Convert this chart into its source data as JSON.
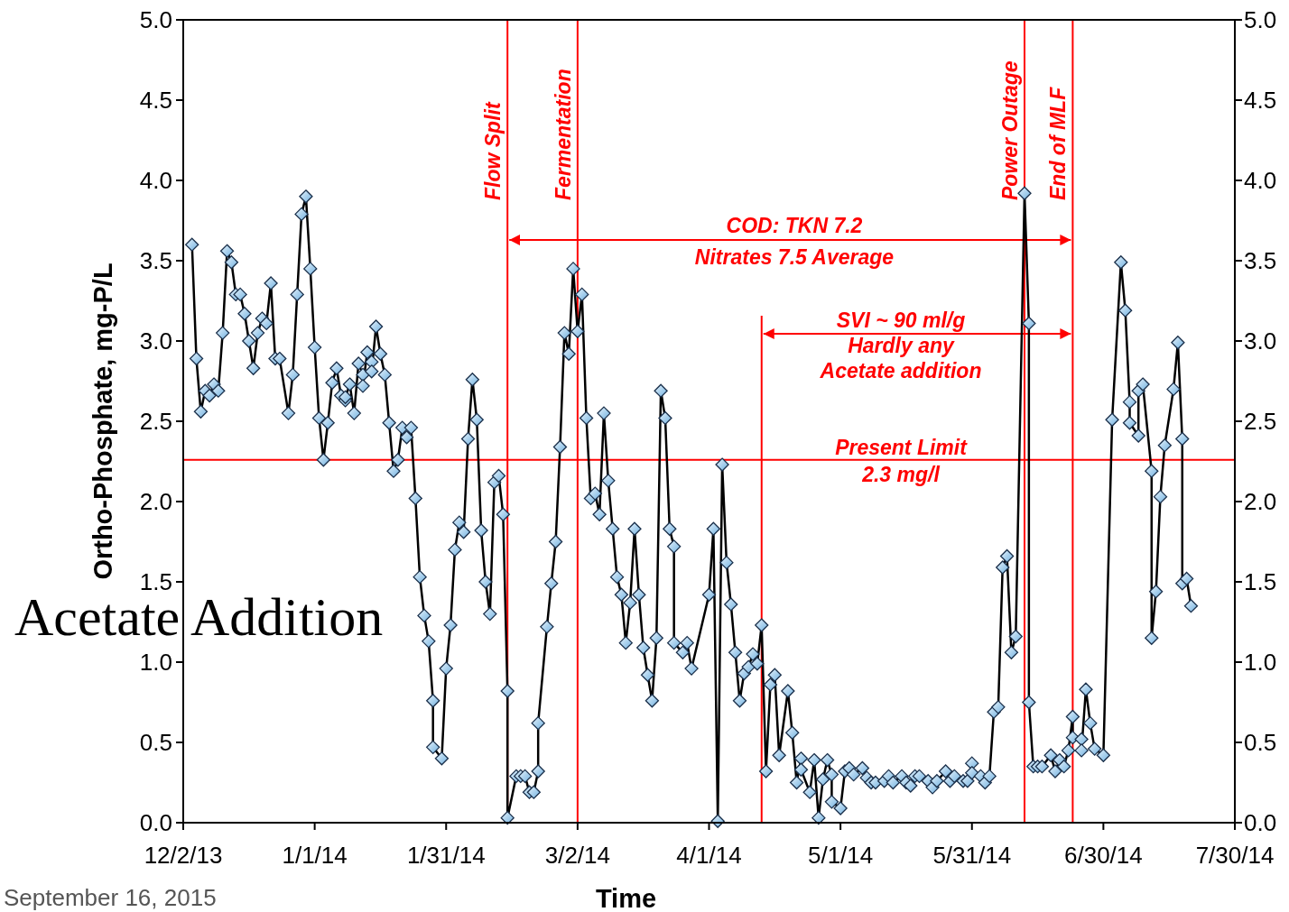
{
  "chart_data": {
    "type": "line",
    "xlabel": "Time",
    "ylabel": "Ortho-Phosphate, mg-P/L",
    "marker": "diamond",
    "line_style": "solid",
    "grid": false,
    "xlim": [
      "2013-12-02",
      "2014-07-30"
    ],
    "xticks": [
      {
        "value": "2013-12-02",
        "label": "12/2/13"
      },
      {
        "value": "2014-01-01",
        "label": "1/1/14"
      },
      {
        "value": "2014-01-31",
        "label": "1/31/14"
      },
      {
        "value": "2014-03-02",
        "label": "3/2/14"
      },
      {
        "value": "2014-04-01",
        "label": "4/1/14"
      },
      {
        "value": "2014-05-01",
        "label": "5/1/14"
      },
      {
        "value": "2014-05-31",
        "label": "5/31/14"
      },
      {
        "value": "2014-06-30",
        "label": "6/30/14"
      },
      {
        "value": "2014-07-30",
        "label": "7/30/14"
      }
    ],
    "ylim": [
      0,
      5
    ],
    "yticks": [
      {
        "value": 0,
        "label": "0.0"
      },
      {
        "value": 0.5,
        "label": "0.5"
      },
      {
        "value": 1,
        "label": "1.0"
      },
      {
        "value": 1.5,
        "label": "1.5"
      },
      {
        "value": 2,
        "label": "2.0"
      },
      {
        "value": 2.5,
        "label": "2.5"
      },
      {
        "value": 3,
        "label": "3.0"
      },
      {
        "value": 3.5,
        "label": "3.5"
      },
      {
        "value": 4,
        "label": "4.0"
      },
      {
        "value": 4.5,
        "label": "4.5"
      },
      {
        "value": 5,
        "label": "5.0"
      }
    ],
    "y2lim": [
      0,
      5
    ],
    "y2ticks": [
      {
        "value": 0,
        "label": "0.0"
      },
      {
        "value": 0.5,
        "label": "0.5"
      },
      {
        "value": 1,
        "label": "1.0"
      },
      {
        "value": 1.5,
        "label": "1.5"
      },
      {
        "value": 2,
        "label": "2.0"
      },
      {
        "value": 2.5,
        "label": "2.5"
      },
      {
        "value": 3,
        "label": "3.0"
      },
      {
        "value": 3.5,
        "label": "3.5"
      },
      {
        "value": 4,
        "label": "4.0"
      },
      {
        "value": 4.5,
        "label": "4.5"
      },
      {
        "value": 5,
        "label": "5.0"
      }
    ],
    "series": [
      {
        "color": "#000000",
        "x": [
          "2013-12-04",
          "2013-12-05",
          "2013-12-06",
          "2013-12-07",
          "2013-12-08",
          "2013-12-09",
          "2013-12-10",
          "2013-12-11",
          "2013-12-12",
          "2013-12-13",
          "2013-12-14",
          "2013-12-15",
          "2013-12-16",
          "2013-12-17",
          "2013-12-18",
          "2013-12-19",
          "2013-12-20",
          "2013-12-21",
          "2013-12-22",
          "2013-12-23",
          "2013-12-24",
          "2013-12-26",
          "2013-12-27",
          "2013-12-28",
          "2013-12-29",
          "2013-12-30",
          "2013-12-31",
          "2014-01-01",
          "2014-01-02",
          "2014-01-03",
          "2014-01-04",
          "2014-01-05",
          "2014-01-06",
          "2014-01-07",
          "2014-01-08",
          "2014-01-08",
          "2014-01-09",
          "2014-01-10",
          "2014-01-11",
          "2014-01-12",
          "2014-01-12",
          "2014-01-13",
          "2014-01-14",
          "2014-01-14",
          "2014-01-15",
          "2014-01-16",
          "2014-01-17",
          "2014-01-18",
          "2014-01-19",
          "2014-01-20",
          "2014-01-21",
          "2014-01-22",
          "2014-01-23",
          "2014-01-24",
          "2014-01-25",
          "2014-01-26",
          "2014-01-27",
          "2014-01-28",
          "2014-01-28",
          "2014-01-30",
          "2014-01-31",
          "2014-02-01",
          "2014-02-02",
          "2014-02-03",
          "2014-02-04",
          "2014-02-05",
          "2014-02-06",
          "2014-02-07",
          "2014-02-08",
          "2014-02-09",
          "2014-02-10",
          "2014-02-11",
          "2014-02-12",
          "2014-02-13",
          "2014-02-14",
          "2014-02-14",
          "2014-02-16",
          "2014-02-17",
          "2014-02-18",
          "2014-02-19",
          "2014-02-20",
          "2014-02-21",
          "2014-02-21",
          "2014-02-23",
          "2014-02-24",
          "2014-02-25",
          "2014-02-26",
          "2014-02-27",
          "2014-02-28",
          "2014-03-01",
          "2014-03-02",
          "2014-03-03",
          "2014-03-04",
          "2014-03-05",
          "2014-03-06",
          "2014-03-07",
          "2014-03-08",
          "2014-03-09",
          "2014-03-10",
          "2014-03-11",
          "2014-03-12",
          "2014-03-13",
          "2014-03-14",
          "2014-03-15",
          "2014-03-16",
          "2014-03-17",
          "2014-03-18",
          "2014-03-19",
          "2014-03-20",
          "2014-03-21",
          "2014-03-22",
          "2014-03-23",
          "2014-03-24",
          "2014-03-24",
          "2014-03-26",
          "2014-03-27",
          "2014-03-28",
          "2014-04-01",
          "2014-04-02",
          "2014-04-03",
          "2014-04-04",
          "2014-04-05",
          "2014-04-06",
          "2014-04-07",
          "2014-04-08",
          "2014-04-09",
          "2014-04-10",
          "2014-04-11",
          "2014-04-12",
          "2014-04-13",
          "2014-04-14",
          "2014-04-15",
          "2014-04-16",
          "2014-04-17",
          "2014-04-19",
          "2014-04-20",
          "2014-04-21",
          "2014-04-22",
          "2014-04-22",
          "2014-04-24",
          "2014-04-25",
          "2014-04-26",
          "2014-04-27",
          "2014-04-28",
          "2014-04-29",
          "2014-04-29",
          "2014-05-01",
          "2014-05-02",
          "2014-05-03",
          "2014-05-04",
          "2014-05-06",
          "2014-05-07",
          "2014-05-08",
          "2014-05-09",
          "2014-05-11",
          "2014-05-12",
          "2014-05-13",
          "2014-05-15",
          "2014-05-16",
          "2014-05-17",
          "2014-05-18",
          "2014-05-19",
          "2014-05-21",
          "2014-05-22",
          "2014-05-23",
          "2014-05-25",
          "2014-05-26",
          "2014-05-27",
          "2014-05-29",
          "2014-05-30",
          "2014-05-31",
          "2014-05-31",
          "2014-06-02",
          "2014-06-03",
          "2014-06-04",
          "2014-06-05",
          "2014-06-06",
          "2014-06-07",
          "2014-06-08",
          "2014-06-09",
          "2014-06-10",
          "2014-06-12",
          "2014-06-13",
          "2014-06-13",
          "2014-06-14",
          "2014-06-15",
          "2014-06-16",
          "2014-06-18",
          "2014-06-19",
          "2014-06-20",
          "2014-06-21",
          "2014-06-22",
          "2014-06-23",
          "2014-06-23",
          "2014-06-25",
          "2014-06-25",
          "2014-06-26",
          "2014-06-27",
          "2014-06-28",
          "2014-06-30",
          "2014-07-02",
          "2014-07-04",
          "2014-07-05",
          "2014-07-06",
          "2014-07-06",
          "2014-07-08",
          "2014-07-08",
          "2014-07-09",
          "2014-07-11",
          "2014-07-11",
          "2014-07-12",
          "2014-07-13",
          "2014-07-14",
          "2014-07-16",
          "2014-07-17",
          "2014-07-18",
          "2014-07-18",
          "2014-07-19",
          "2014-07-20"
        ],
        "values": [
          3.6,
          2.89,
          2.56,
          2.69,
          2.66,
          2.73,
          2.69,
          3.05,
          3.56,
          3.49,
          3.29,
          3.29,
          3.17,
          3.0,
          2.83,
          3.05,
          3.14,
          3.11,
          3.36,
          2.89,
          2.89,
          2.55,
          2.79,
          3.29,
          3.79,
          3.9,
          3.45,
          2.96,
          2.52,
          2.26,
          2.49,
          2.74,
          2.83,
          2.66,
          2.63,
          2.65,
          2.73,
          2.55,
          2.86,
          2.79,
          2.72,
          2.93,
          2.87,
          2.81,
          3.09,
          2.92,
          2.79,
          2.49,
          2.19,
          2.26,
          2.46,
          2.4,
          2.46,
          2.02,
          1.53,
          1.29,
          1.13,
          0.76,
          0.47,
          0.4,
          0.96,
          1.23,
          1.7,
          1.87,
          1.81,
          2.39,
          2.76,
          2.51,
          1.82,
          1.5,
          1.3,
          2.12,
          2.16,
          1.92,
          0.82,
          0.03,
          0.29,
          0.29,
          0.29,
          0.19,
          0.19,
          0.32,
          0.62,
          1.22,
          1.49,
          1.75,
          2.34,
          3.05,
          2.92,
          3.45,
          3.06,
          3.29,
          2.52,
          2.02,
          2.05,
          1.92,
          2.55,
          2.13,
          1.83,
          1.53,
          1.42,
          1.12,
          1.37,
          1.83,
          1.42,
          1.09,
          0.92,
          0.76,
          1.15,
          2.69,
          2.52,
          1.83,
          1.72,
          1.12,
          1.06,
          1.12,
          0.96,
          1.42,
          1.83,
          0.01,
          2.23,
          1.62,
          1.36,
          1.06,
          0.76,
          0.93,
          0.97,
          1.05,
          0.99,
          1.23,
          0.32,
          0.86,
          0.92,
          0.42,
          0.82,
          0.56,
          0.25,
          0.4,
          0.33,
          0.19,
          0.39,
          0.03,
          0.27,
          0.39,
          0.3,
          0.13,
          0.09,
          0.32,
          0.34,
          0.3,
          0.34,
          0.28,
          0.25,
          0.25,
          0.26,
          0.29,
          0.25,
          0.29,
          0.25,
          0.23,
          0.29,
          0.29,
          0.26,
          0.22,
          0.26,
          0.32,
          0.26,
          0.29,
          0.26,
          0.26,
          0.37,
          0.31,
          0.29,
          0.25,
          0.29,
          0.69,
          0.72,
          1.59,
          1.66,
          1.06,
          1.16,
          3.92,
          3.11,
          0.75,
          0.35,
          0.35,
          0.35,
          0.42,
          0.32,
          0.39,
          0.35,
          0.45,
          0.66,
          0.53,
          0.52,
          0.45,
          0.83,
          0.62,
          0.46,
          0.42,
          2.51,
          3.49,
          3.19,
          2.62,
          2.49,
          2.41,
          2.69,
          2.73,
          2.19,
          1.15,
          1.44,
          2.03,
          2.35,
          2.7,
          2.99,
          2.39,
          1.49,
          1.52,
          1.35
        ]
      }
    ],
    "ref_lines": [
      {
        "axis": "x",
        "value": "2014-02-14",
        "label": "Flow Split",
        "color": "#ff0000"
      },
      {
        "axis": "x",
        "value": "2014-03-02",
        "label": "Fermentation",
        "color": "#ff0000"
      },
      {
        "axis": "x",
        "value": "2014-06-12",
        "label": "Power Outage",
        "color": "#ff0000"
      },
      {
        "axis": "x",
        "value": "2014-06-23",
        "label": "End of MLF",
        "color": "#ff0000"
      },
      {
        "axis": "x",
        "value": "2014-04-13",
        "color": "#ff0000"
      },
      {
        "axis": "y",
        "value": 2.26,
        "label": "Present Limit\n2.3 mg/l",
        "color": "#ff0000"
      }
    ],
    "annotations": [
      "COD: TKN 7.2\nNitrates 7.5 Average",
      "SVI ~ 90 ml/g\nHardly any\nAcetate addition",
      "Acetate Addition",
      "September 16, 2015"
    ]
  }
}
